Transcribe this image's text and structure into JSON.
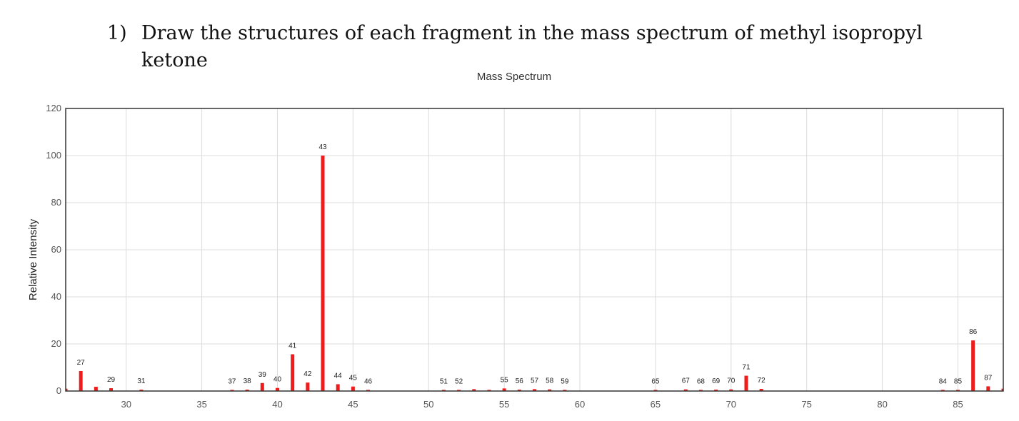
{
  "question": {
    "number": "1)",
    "text": "Draw the structures of each fragment in the mass spectrum of methyl isopropyl ketone"
  },
  "chart_data": {
    "type": "bar",
    "title": "Mass Spectrum",
    "xlabel": "",
    "ylabel": "Relative Intensity",
    "xlim": [
      26,
      88
    ],
    "ylim": [
      0,
      120
    ],
    "xticks": [
      30,
      35,
      40,
      45,
      50,
      55,
      60,
      65,
      70,
      75,
      80,
      85
    ],
    "yticks": [
      0,
      20,
      40,
      60,
      80,
      100,
      120
    ],
    "grid": true,
    "bar_color": "#ee1c1c",
    "peaks": [
      {
        "mz": 26,
        "intensity": 1.0,
        "label": ""
      },
      {
        "mz": 27,
        "intensity": 8.5,
        "label": "27"
      },
      {
        "mz": 28,
        "intensity": 1.8,
        "label": ""
      },
      {
        "mz": 29,
        "intensity": 1.2,
        "label": "29"
      },
      {
        "mz": 31,
        "intensity": 0.6,
        "label": "31"
      },
      {
        "mz": 37,
        "intensity": 0.5,
        "label": "37"
      },
      {
        "mz": 38,
        "intensity": 0.6,
        "label": "38"
      },
      {
        "mz": 39,
        "intensity": 3.4,
        "label": "39"
      },
      {
        "mz": 40,
        "intensity": 1.3,
        "label": "40"
      },
      {
        "mz": 41,
        "intensity": 15.6,
        "label": "41"
      },
      {
        "mz": 42,
        "intensity": 3.6,
        "label": "42"
      },
      {
        "mz": 43,
        "intensity": 100,
        "label": "43"
      },
      {
        "mz": 44,
        "intensity": 2.9,
        "label": "44"
      },
      {
        "mz": 45,
        "intensity": 1.9,
        "label": "45"
      },
      {
        "mz": 46,
        "intensity": 0.5,
        "label": "46"
      },
      {
        "mz": 51,
        "intensity": 0.5,
        "label": "51"
      },
      {
        "mz": 52,
        "intensity": 0.5,
        "label": "52"
      },
      {
        "mz": 53,
        "intensity": 0.8,
        "label": ""
      },
      {
        "mz": 54,
        "intensity": 0.5,
        "label": ""
      },
      {
        "mz": 55,
        "intensity": 1.1,
        "label": "55"
      },
      {
        "mz": 56,
        "intensity": 0.6,
        "label": "56"
      },
      {
        "mz": 57,
        "intensity": 0.8,
        "label": "57"
      },
      {
        "mz": 58,
        "intensity": 0.7,
        "label": "58"
      },
      {
        "mz": 59,
        "intensity": 0.5,
        "label": "59"
      },
      {
        "mz": 65,
        "intensity": 0.5,
        "label": "65"
      },
      {
        "mz": 67,
        "intensity": 0.7,
        "label": "67"
      },
      {
        "mz": 68,
        "intensity": 0.5,
        "label": "68"
      },
      {
        "mz": 69,
        "intensity": 0.6,
        "label": "69"
      },
      {
        "mz": 70,
        "intensity": 0.7,
        "label": "70"
      },
      {
        "mz": 71,
        "intensity": 6.5,
        "label": "71"
      },
      {
        "mz": 72,
        "intensity": 0.9,
        "label": "72"
      },
      {
        "mz": 84,
        "intensity": 0.5,
        "label": "84"
      },
      {
        "mz": 85,
        "intensity": 0.5,
        "label": "85"
      },
      {
        "mz": 86,
        "intensity": 21.5,
        "label": "86"
      },
      {
        "mz": 87,
        "intensity": 2.0,
        "label": "87"
      },
      {
        "mz": 88,
        "intensity": 1.0,
        "label": ""
      }
    ]
  }
}
